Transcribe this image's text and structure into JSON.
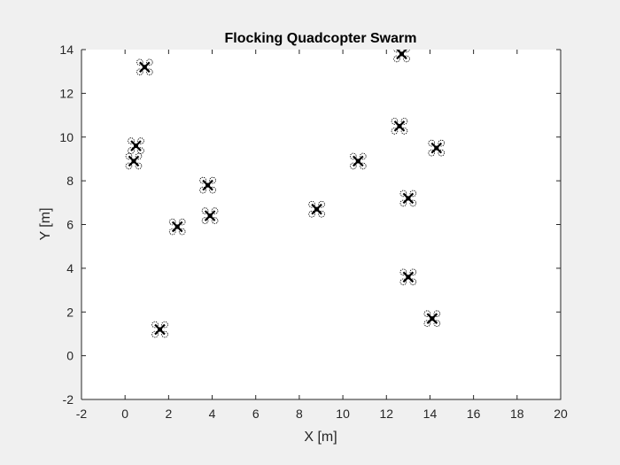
{
  "chart_data": {
    "type": "scatter",
    "title": "Flocking Quadcopter Swarm",
    "xlabel": "X [m]",
    "ylabel": "Y [m]",
    "xlim": [
      -2,
      20
    ],
    "ylim": [
      -2,
      14
    ],
    "xticks": [
      "-2",
      "0",
      "2",
      "4",
      "6",
      "8",
      "10",
      "12",
      "14",
      "16",
      "18",
      "20"
    ],
    "yticks": [
      "-2",
      "0",
      "2",
      "4",
      "6",
      "8",
      "10",
      "12",
      "14"
    ],
    "grid": false,
    "marker": "quadcopter-icon",
    "colors": {
      "figure_bg": "#f0f0f0",
      "axes_bg": "#ffffff",
      "axis": "#262626",
      "marker": "#000000"
    },
    "points": [
      {
        "x": 0.9,
        "y": 13.2
      },
      {
        "x": 12.7,
        "y": 13.8
      },
      {
        "x": 0.5,
        "y": 9.6
      },
      {
        "x": 0.4,
        "y": 8.9
      },
      {
        "x": 12.6,
        "y": 10.5
      },
      {
        "x": 14.3,
        "y": 9.5
      },
      {
        "x": 10.7,
        "y": 8.9
      },
      {
        "x": 3.8,
        "y": 7.8
      },
      {
        "x": 13.0,
        "y": 7.2
      },
      {
        "x": 8.8,
        "y": 6.7
      },
      {
        "x": 3.9,
        "y": 6.4
      },
      {
        "x": 2.4,
        "y": 5.9
      },
      {
        "x": 13.0,
        "y": 3.6
      },
      {
        "x": 14.1,
        "y": 1.7
      },
      {
        "x": 1.6,
        "y": 1.2
      }
    ]
  }
}
